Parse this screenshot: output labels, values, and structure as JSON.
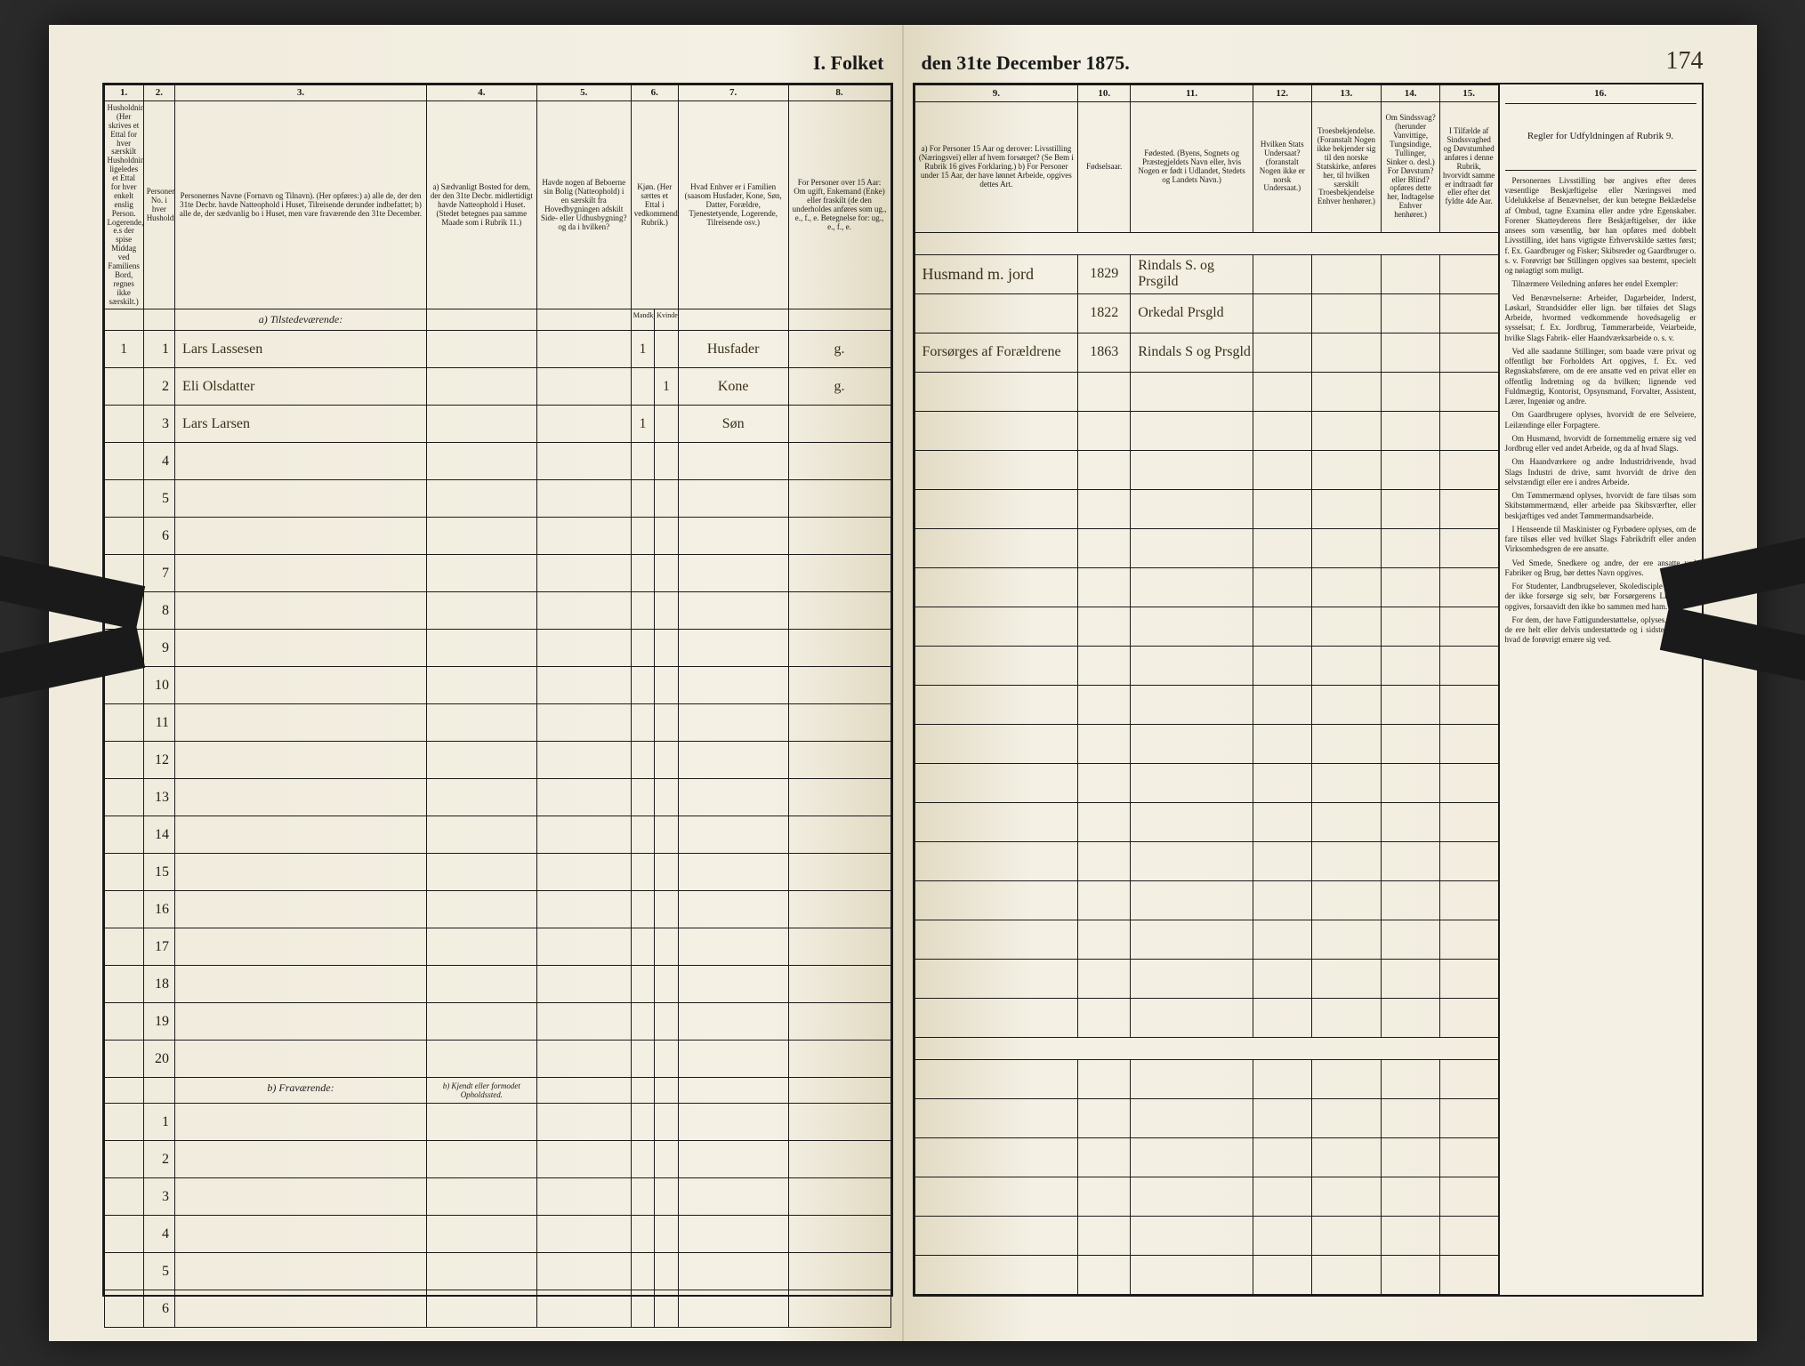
{
  "title_left": "I. Folket",
  "title_right": "den 31te December 1875.",
  "page_number": "174",
  "columns_left": {
    "c1": "1.",
    "c2": "2.",
    "c3": "3.",
    "c4": "4.",
    "c5": "5.",
    "c6": "6.",
    "c7": "7.",
    "c8": "8."
  },
  "columns_right": {
    "c9": "9.",
    "c10": "10.",
    "c11": "11.",
    "c12": "12.",
    "c13": "13.",
    "c14": "14.",
    "c15": "15.",
    "c16": "16."
  },
  "headers_left": {
    "h1": "Husholdninger. (Her skrives et Ettal for hver særskilt Husholdning; ligeledes et Ettal for hver enkelt enslig Person. Logerende, e.s der spise Middag ved Familiens Bord, regnes ikke særskilt.)",
    "h2": "Personernes No. i hver Husholdning.",
    "h3": "Personernes Navne (Fornavn og Tilnavn).\n(Her opføres:)\na) alle de, der den 31te Decbr. havde Natteophold i Huset, Tilreisende derunder indbefattet;\nb) alle de, der sædvanlig bo i Huset, men vare fraværende den 31te December.",
    "h4": "a) Sædvanligt Bosted for dem, der den 31te Decbr. midlertidigt havde Natteophold i Huset. (Stedet betegnes paa samme Maade som i Rubrik 11.)",
    "h5": "Havde nogen af Beboerne sin Bolig (Natteophold) i en særskilt fra Hovedbygningen adskilt Side- eller Udhusbygning? og da i hvilken?",
    "h6a": "Kjøn. (Her sættes et Ettal i vedkommende Rubrik.)",
    "h6b": "Mandkjøn.",
    "h6c": "Kvindekjøn.",
    "h7": "Hvad Enhver er i Familien (saasom Husfader, Kone, Søn, Datter, Forældre, Tjenestetyende, Logerende, Tilreisende osv.)",
    "h8": "For Personer over 15 Aar: Om ugift, Enkemand (Enke) eller fraskilt (de den underholdes anføres som ug., e., f., e. Betegnelse for:\nug., e., f., e."
  },
  "headers_right": {
    "h9": "a) For Personer 15 Aar og derover: Livsstilling (Næringsvei) eller af hvem forsørget? (Se Bem i Rubrik 16 gives Forklaring.)\nb) For Personer under 15 Aar, der have lønnet Arbeide, opgives dettes Art.",
    "h10": "Fødselsaar.",
    "h11": "Fødested. (Byens, Sognets og Præstegjeldets Navn eller, hvis Nogen er født i Udlandet, Stedets og Landets Navn.)",
    "h12": "Hvilken Stats Undersaat? (foranstalt Nogen ikke er norsk Undersaat.)",
    "h13": "Troesbekjendelse. (Foranstalt Nogen ikke bekjender sig til den norske Statskirke, anføres her, til hvilken særskilt Troesbekjendelse Enhver henhører.)",
    "h14": "Om Sindssvag? (herunder Vanvittige, Tungsindige, Tullinger, Sinker o. desl.) For Døvstum? eller Blind? opføres dette her, Indtagelse Enhver henhører.)",
    "h15": "I Tilfælde af Sindssvaghed og Døvstumhed anføres i denne Rubrik, hvorvidt samme er indtraadt før eller efter det fyldte 4de Aar."
  },
  "rules_title": "Regler for Udfyldningen af Rubrik 9.",
  "rules_body": [
    "Personernes Livsstilling bør angives efter deres væsentlige Beskjæftigelse eller Næringsvei med Udelukkelse af Benævnelser, der kun betegne Beklædelse af Ombud, tagne Examina eller andre ydre Egenskaber. Forener Skatteyderens flere Beskjæftigelser, der ikke ansees som væsentlig, bør han opføres med dobbelt Livsstilling, idet hans vigtigste Erhvervskilde sættes først; f. Ex. Gaardbruger og Fisker; Skibsreder og Gaardbruger o. s. v. Forøvrigt bør Stillingen opgives saa bestemt, specielt og nøiagtigt som muligt.",
    "Tilnærmere Veiledning anføres her endel Exempler:",
    "Ved Benævnelserne: Arbeider, Dagarbeider, Inderst, Løskarl, Strandsidder eller lign. bør tilføies det Slags Arbeide, hvormed vedkommende hovedsagelig er sysselsat; f. Ex. Jordbrug, Tømmerarbeide, Veiarbeide, hvilke Slags Fabrik- eller Haandværksarbeide o. s. v.",
    "Ved alle saadanne Stillinger, som baade være privat og offentligt bør Forholdets Art opgives, f. Ex. ved Regnskabsførere, om de ere ansatte ved en privat eller en offentlig Indretning og da hvilken; lignende ved Fuldmægtig, Kontorist, Opsynsmand, Forvalter, Assistent, Lærer, Ingeniør og andre.",
    "Om Gaardbrugere oplyses, hvorvidt de ere Selveiere, Leilændinge eller Forpagtere.",
    "Om Husmænd, hvorvidt de fornemmelig ernære sig ved Jordbrug eller ved andet Arbeide, og da af hvad Slags.",
    "Om Haandværkere og andre Industridrivende, hvad Slags Industri de drive, samt hvorvidt de drive den selvstændigt eller ere i andres Arbeide.",
    "Om Tømmermænd oplyses, hvorvidt de fare tilsøs som Skibstømmermænd, eller arbeide paa Skibsværfter, eller beskjæftiges ved andet Tømmermandsarbeide.",
    "I Henseende til Maskinister og Fyrbødere oplyses, om de fare tilsøs eller ved hvilket Slags Fabrikdrift eller anden Virksomhedsgren de ere ansatte.",
    "Ved Smede, Snedkere og andre, der ere ansatte ved Fabriker og Brug, bør dettes Navn opgives.",
    "For Studenter, Landbrugselever, Skoledisciple og andre, der ikke forsørge sig selv, bør Forsørgerens Livsstilling opgives, forsaavidt den ikke bo sammen med ham.",
    "For dem, der have Fattigunderstøttelse, oplyses, hvorvidt de ere helt eller delvis understøttede og i sidste Tilfælde, hvad de forøvrigt ernære sig ved."
  ],
  "section_a": "a) Tilstedeværende:",
  "section_b": "b) Fraværende:",
  "section_b_note": "b) Kjendt eller formodet Opholdssted.",
  "rows": [
    {
      "house": "1",
      "num": "1",
      "name": "Lars Lassesen",
      "sex_m": "1",
      "sex_f": "",
      "role": "Husfader",
      "status": "g.",
      "occupation": "Husmand m. jord",
      "year": "1829",
      "birthplace": "Rindals S. og Prsgild"
    },
    {
      "house": "",
      "num": "2",
      "name": "Eli Olsdatter",
      "sex_m": "",
      "sex_f": "1",
      "role": "Kone",
      "status": "g.",
      "occupation": "",
      "year": "1822",
      "birthplace": "Orkedal Prsgld"
    },
    {
      "house": "",
      "num": "3",
      "name": "Lars Larsen",
      "sex_m": "1",
      "sex_f": "",
      "role": "Søn",
      "status": "",
      "occupation": "Forsørges af Forældrene",
      "year": "1863",
      "birthplace": "Rindals S og Prsgld"
    }
  ],
  "empty_a": [
    "4",
    "5",
    "6",
    "7",
    "8",
    "9",
    "10",
    "11",
    "12",
    "13",
    "14",
    "15",
    "16",
    "17",
    "18",
    "19",
    "20"
  ],
  "empty_b": [
    "1",
    "2",
    "3",
    "4",
    "5",
    "6"
  ],
  "colors": {
    "paper": "#f4f0e4",
    "ink": "#1a1a1a",
    "handwriting": "#3a2f1a",
    "background": "#2a2a2a"
  }
}
